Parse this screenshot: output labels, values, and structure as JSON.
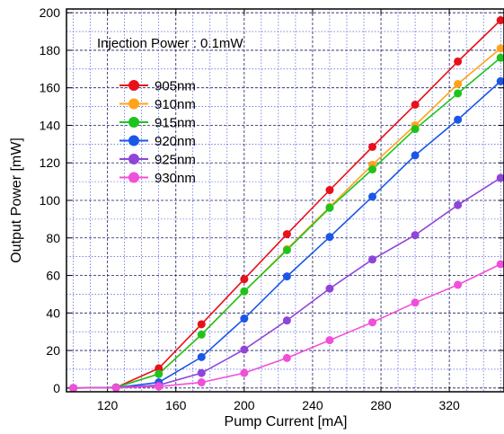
{
  "chart_data": {
    "type": "line",
    "annotation": "Injection Power : 0.1mW",
    "xlabel": "Pump Current [mA]",
    "ylabel": "Output Power [mW]",
    "xlim": [
      96,
      352
    ],
    "ylim": [
      -2,
      202
    ],
    "xticks": [
      120,
      160,
      200,
      240,
      280,
      320
    ],
    "yticks": [
      0,
      20,
      40,
      60,
      80,
      100,
      120,
      140,
      160,
      180,
      200
    ],
    "grid": true,
    "legend_position": "upper-left",
    "x": [
      100,
      125,
      150,
      175,
      200,
      225,
      250,
      275,
      300,
      325,
      350
    ],
    "series": [
      {
        "name": "905nm",
        "color": "#e8101b",
        "values": [
          0,
          0.3,
          10.5,
          34,
          58,
          82,
          105.5,
          128.5,
          151,
          174,
          196
        ]
      },
      {
        "name": "910nm",
        "color": "#ffa31a",
        "values": [
          0,
          0.3,
          7.5,
          28.5,
          51.5,
          74,
          96.5,
          119,
          140,
          162,
          181
        ]
      },
      {
        "name": "915nm",
        "color": "#1ec41e",
        "values": [
          0,
          0.3,
          7.5,
          28.5,
          51.5,
          73.5,
          96,
          116.5,
          138,
          157,
          176
        ]
      },
      {
        "name": "920nm",
        "color": "#1a57e8",
        "values": [
          0,
          0.2,
          3,
          16.5,
          37,
          59.5,
          80.5,
          102,
          124,
          143,
          163.5
        ]
      },
      {
        "name": "925nm",
        "color": "#8f45d8",
        "values": [
          0,
          0.2,
          1.5,
          8,
          20.5,
          36,
          53,
          68.5,
          81.5,
          97.5,
          112
        ]
      },
      {
        "name": "930nm",
        "color": "#f04fd9",
        "values": [
          0,
          0.1,
          0.8,
          3,
          8,
          16,
          25.5,
          35,
          45.5,
          55,
          66
        ]
      }
    ]
  }
}
